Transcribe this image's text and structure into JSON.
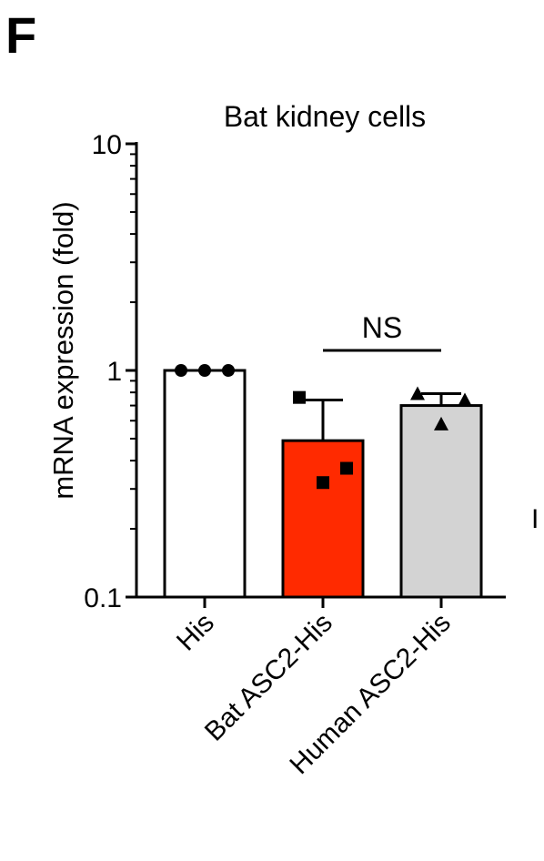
{
  "panel_label": "F",
  "edge_fragment": "I",
  "chart_data": {
    "type": "bar",
    "title": "Bat kidney cells",
    "ylabel": "mRNA expression (fold)",
    "xlabel": "",
    "yscale": "log",
    "ylim": [
      0.1,
      10
    ],
    "yticks": [
      {
        "value": 10,
        "label": "10"
      },
      {
        "value": 1,
        "label": "1"
      },
      {
        "value": 0.1,
        "label": "0.1"
      }
    ],
    "categories": [
      "His",
      "Bat ASC2-His",
      "Human ASC2-His"
    ],
    "values": [
      1.0,
      0.49,
      0.7
    ],
    "error_upper": [
      1.0,
      0.74,
      0.79
    ],
    "bar_colors": [
      "#ffffff",
      "#ff2a00",
      "#d3d3d3"
    ],
    "points": [
      {
        "marker": "circle",
        "values": [
          1.0,
          1.0,
          1.0
        ]
      },
      {
        "marker": "square",
        "values": [
          0.76,
          0.32,
          0.37
        ]
      },
      {
        "marker": "triangle",
        "values": [
          0.79,
          0.58,
          0.74
        ]
      }
    ],
    "annotations": [
      {
        "text": "NS",
        "from_category": 1,
        "to_category": 2
      }
    ]
  }
}
